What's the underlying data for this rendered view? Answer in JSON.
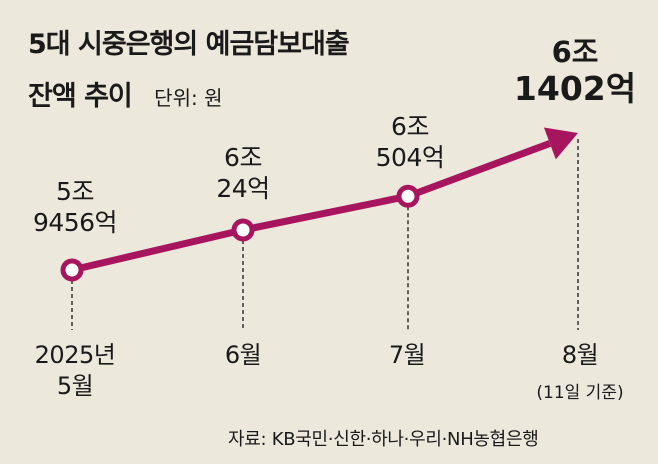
{
  "chart_data": {
    "type": "line",
    "title_line1": "5대 시중은행의 예금담보대출",
    "title_line2": "잔액 추이",
    "unit_label": "단위: 원",
    "source": "자료: KB국민·신한·하나·우리·NH농협은행",
    "line_color": "#a8155f",
    "points": [
      {
        "x_label_1": "2025년",
        "x_label_2": "5월",
        "value_label_1": "5조",
        "value_label_2": "9456억",
        "value_eok": 59456
      },
      {
        "x_label_1": "6월",
        "x_label_2": "",
        "value_label_1": "6조",
        "value_label_2": "24억",
        "value_eok": 60024
      },
      {
        "x_label_1": "7월",
        "x_label_2": "",
        "value_label_1": "6조",
        "value_label_2": "504억",
        "value_eok": 60504
      },
      {
        "x_label_1": "8월",
        "x_label_2": "(11일 기준)",
        "value_label_1": "6조",
        "value_label_2": "1402억",
        "value_eok": 61402
      }
    ]
  }
}
